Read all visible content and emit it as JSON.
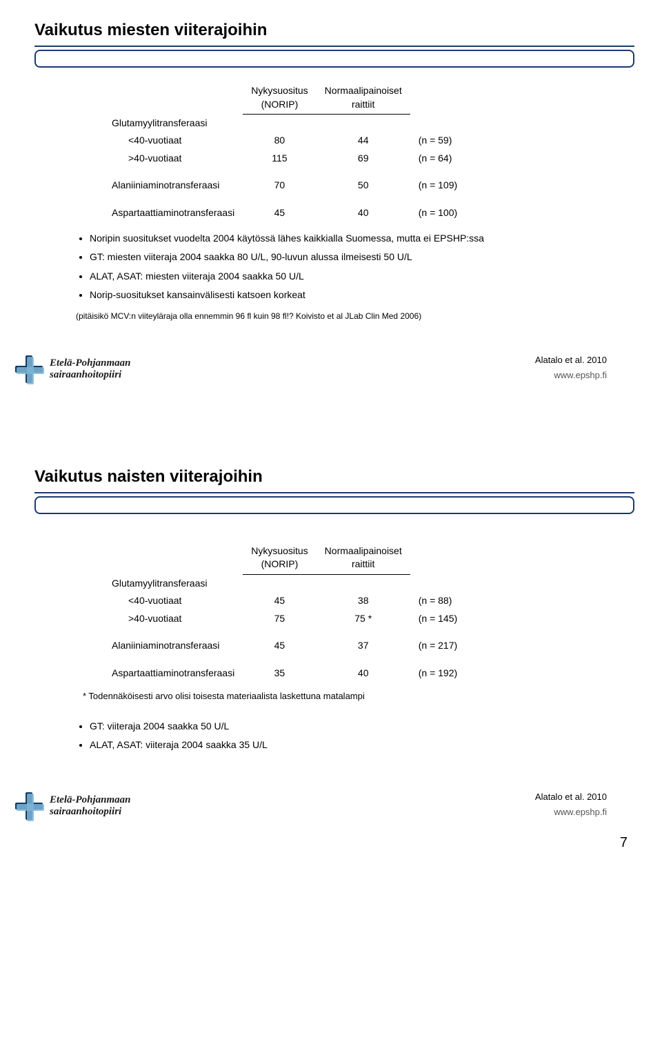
{
  "page_number": "7",
  "colors": {
    "rule": "#1a3a6e",
    "logo_dark": "#0f3b66",
    "logo_light": "#7fb6d6"
  },
  "logo": {
    "line1": "Etelä-Pohjanmaan",
    "line2": "sairaanhoitopiiri"
  },
  "url": "www.epshp.fi",
  "slide1": {
    "title": "Vaikutus miesten viiterajoihin",
    "header_col1": "Nykysuositus\n(NORIP)",
    "header_col2": "Normaalipainoiset\nraittiit",
    "rows": [
      {
        "label": "Glutamyylitransferaasi",
        "v1": "",
        "v2": "",
        "n": ""
      },
      {
        "label": "<40-vuotiaat",
        "sub": true,
        "v1": "80",
        "v2": "44",
        "n": "(n = 59)"
      },
      {
        "label": ">40-vuotiaat",
        "sub": true,
        "v1": "115",
        "v2": "69",
        "n": "(n = 64)"
      },
      {
        "spacer": true
      },
      {
        "label": "Alaniiniaminotransferaasi",
        "v1": "70",
        "v2": "50",
        "n": "(n = 109)"
      },
      {
        "spacer": true
      },
      {
        "label": "Aspartaattiaminotransferaasi",
        "v1": "45",
        "v2": "40",
        "n": "(n = 100)"
      }
    ],
    "bullets": [
      "Noripin suositukset vuodelta 2004 käytössä lähes kaikkialla Suomessa, mutta ei EPSHP:ssa",
      "GT: miesten viiteraja 2004 saakka 80 U/L, 90-luvun alussa ilmeisesti 50 U/L",
      "ALAT, ASAT: miesten viiteraja 2004 saakka 50 U/L",
      "Norip-suositukset kansainvälisesti katsoen korkeat"
    ],
    "note": "(pitäisikö MCV:n viiteyläraja olla ennemmin 96 fl kuin 98 fl!? Koivisto et al JLab Clin Med 2006)",
    "cite": "Alatalo et al. 2010"
  },
  "slide2": {
    "title": "Vaikutus naisten viiterajoihin",
    "header_col1": "Nykysuositus\n(NORIP)",
    "header_col2": "Normaalipainoiset\nraittiit",
    "rows": [
      {
        "label": "Glutamyylitransferaasi",
        "v1": "",
        "v2": "",
        "n": ""
      },
      {
        "label": "<40-vuotiaat",
        "sub": true,
        "v1": "45",
        "v2": "38",
        "n": "(n = 88)"
      },
      {
        "label": ">40-vuotiaat",
        "sub": true,
        "v1": "75",
        "v2": "75 *",
        "n": "(n = 145)"
      },
      {
        "spacer": true
      },
      {
        "label": "Alaniiniaminotransferaasi",
        "v1": "45",
        "v2": "37",
        "n": "(n = 217)"
      },
      {
        "spacer": true
      },
      {
        "label": "Aspartaattiaminotransferaasi",
        "v1": "35",
        "v2": "40",
        "n": "(n = 192)"
      }
    ],
    "footnote": "* Todennäköisesti arvo olisi toisesta materiaalista laskettuna matalampi",
    "bullets": [
      "GT: viiteraja 2004 saakka 50 U/L",
      "ALAT, ASAT: viiteraja 2004 saakka 35 U/L"
    ],
    "cite": "Alatalo et al. 2010"
  }
}
